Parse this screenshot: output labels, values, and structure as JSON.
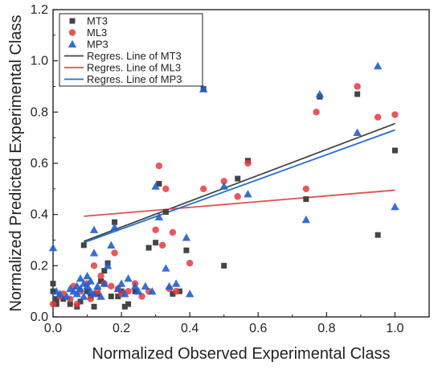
{
  "chart_data": {
    "type": "scatter",
    "title": "",
    "xlabel": "Normalized Observed Experimental Class",
    "ylabel": "Normalized Predicted Experimental Class",
    "xlim": [
      0,
      1.1
    ],
    "ylim": [
      0,
      1.2
    ],
    "xticks": [
      0.0,
      0.2,
      0.4,
      0.6,
      0.8,
      1.0
    ],
    "xtick_labels": [
      "0.0",
      "0.2",
      "0.4",
      "0.6",
      "0.8",
      "1.0"
    ],
    "yticks": [
      0.0,
      0.2,
      0.4,
      0.6,
      0.8,
      1.0,
      1.2
    ],
    "ytick_labels": [
      "0.0",
      "0.2",
      "0.4",
      "0.6",
      "0.8",
      "1.0",
      "1.2"
    ],
    "grid": false,
    "legend_position": "top-left",
    "series": [
      {
        "name": "MT3",
        "marker": "square",
        "color": "#444444",
        "points": [
          [
            0.0,
            0.13
          ],
          [
            0.0,
            0.1
          ],
          [
            0.01,
            0.07
          ],
          [
            0.01,
            0.05
          ],
          [
            0.03,
            0.07
          ],
          [
            0.05,
            0.05
          ],
          [
            0.07,
            0.04
          ],
          [
            0.08,
            0.06
          ],
          [
            0.09,
            0.28
          ],
          [
            0.1,
            0.1
          ],
          [
            0.11,
            0.08
          ],
          [
            0.12,
            0.04
          ],
          [
            0.13,
            0.09
          ],
          [
            0.14,
            0.14
          ],
          [
            0.15,
            0.18
          ],
          [
            0.16,
            0.21
          ],
          [
            0.17,
            0.08
          ],
          [
            0.18,
            0.37
          ],
          [
            0.19,
            0.08
          ],
          [
            0.2,
            0.1
          ],
          [
            0.21,
            0.04
          ],
          [
            0.22,
            0.05
          ],
          [
            0.24,
            0.1
          ],
          [
            0.28,
            0.27
          ],
          [
            0.3,
            0.29
          ],
          [
            0.31,
            0.52
          ],
          [
            0.33,
            0.41
          ],
          [
            0.35,
            0.09
          ],
          [
            0.37,
            0.1
          ],
          [
            0.39,
            0.26
          ],
          [
            0.44,
            0.89
          ],
          [
            0.5,
            0.2
          ],
          [
            0.54,
            0.54
          ],
          [
            0.57,
            0.61
          ],
          [
            0.74,
            0.46
          ],
          [
            0.78,
            0.86
          ],
          [
            0.89,
            0.87
          ],
          [
            0.95,
            0.32
          ],
          [
            1.0,
            0.65
          ]
        ]
      },
      {
        "name": "ML3",
        "marker": "circle",
        "color": "#e8383d",
        "points": [
          [
            0.0,
            0.05
          ],
          [
            0.02,
            0.08
          ],
          [
            0.03,
            0.09
          ],
          [
            0.05,
            0.07
          ],
          [
            0.06,
            0.12
          ],
          [
            0.07,
            0.05
          ],
          [
            0.08,
            0.1
          ],
          [
            0.1,
            0.13
          ],
          [
            0.11,
            0.07
          ],
          [
            0.12,
            0.2
          ],
          [
            0.13,
            0.1
          ],
          [
            0.14,
            0.16
          ],
          [
            0.15,
            0.13
          ],
          [
            0.17,
            0.12
          ],
          [
            0.18,
            0.25
          ],
          [
            0.19,
            0.11
          ],
          [
            0.2,
            0.09
          ],
          [
            0.22,
            0.1
          ],
          [
            0.24,
            0.13
          ],
          [
            0.26,
            0.08
          ],
          [
            0.28,
            0.1
          ],
          [
            0.3,
            0.34
          ],
          [
            0.31,
            0.59
          ],
          [
            0.32,
            0.28
          ],
          [
            0.33,
            0.5
          ],
          [
            0.34,
            0.11
          ],
          [
            0.35,
            0.33
          ],
          [
            0.36,
            0.1
          ],
          [
            0.4,
            0.21
          ],
          [
            0.44,
            0.5
          ],
          [
            0.5,
            0.53
          ],
          [
            0.54,
            0.47
          ],
          [
            0.57,
            0.6
          ],
          [
            0.74,
            0.5
          ],
          [
            0.77,
            0.8
          ],
          [
            0.89,
            0.9
          ],
          [
            0.95,
            0.78
          ],
          [
            1.0,
            0.79
          ]
        ]
      },
      {
        "name": "MP3",
        "marker": "triangle",
        "color": "#1f5fcf",
        "points": [
          [
            0.0,
            0.27
          ],
          [
            0.01,
            0.1
          ],
          [
            0.02,
            0.09
          ],
          [
            0.04,
            0.08
          ],
          [
            0.05,
            0.11
          ],
          [
            0.06,
            0.1
          ],
          [
            0.07,
            0.12
          ],
          [
            0.07,
            0.09
          ],
          [
            0.08,
            0.15
          ],
          [
            0.08,
            0.11
          ],
          [
            0.09,
            0.13
          ],
          [
            0.09,
            0.08
          ],
          [
            0.1,
            0.16
          ],
          [
            0.1,
            0.12
          ],
          [
            0.11,
            0.1
          ],
          [
            0.11,
            0.14
          ],
          [
            0.12,
            0.09
          ],
          [
            0.12,
            0.25
          ],
          [
            0.12,
            0.34
          ],
          [
            0.13,
            0.12
          ],
          [
            0.14,
            0.08
          ],
          [
            0.15,
            0.13
          ],
          [
            0.16,
            0.2
          ],
          [
            0.17,
            0.28
          ],
          [
            0.18,
            0.35
          ],
          [
            0.19,
            0.11
          ],
          [
            0.2,
            0.13
          ],
          [
            0.21,
            0.09
          ],
          [
            0.22,
            0.15
          ],
          [
            0.24,
            0.12
          ],
          [
            0.25,
            0.1
          ],
          [
            0.27,
            0.12
          ],
          [
            0.29,
            0.1
          ],
          [
            0.3,
            0.51
          ],
          [
            0.31,
            0.39
          ],
          [
            0.33,
            0.19
          ],
          [
            0.34,
            0.12
          ],
          [
            0.36,
            0.13
          ],
          [
            0.39,
            0.31
          ],
          [
            0.4,
            0.09
          ],
          [
            0.44,
            0.89
          ],
          [
            0.5,
            0.51
          ],
          [
            0.57,
            0.48
          ],
          [
            0.74,
            0.38
          ],
          [
            0.78,
            0.87
          ],
          [
            0.89,
            0.72
          ],
          [
            0.95,
            0.98
          ],
          [
            1.0,
            0.43
          ]
        ]
      }
    ],
    "regression_lines": [
      {
        "name": "Regres. Line of MT3",
        "color": "#444444",
        "x": [
          0.09,
          1.0
        ],
        "y": [
          0.295,
          0.755
        ]
      },
      {
        "name": "Regres. Line of ML3",
        "color": "#d9534f",
        "x": [
          0.09,
          1.0
        ],
        "y": [
          0.393,
          0.495
        ]
      },
      {
        "name": "Regres. Line of MP3",
        "color": "#1f6fd1",
        "x": [
          0.09,
          1.0
        ],
        "y": [
          0.29,
          0.73
        ]
      }
    ]
  }
}
